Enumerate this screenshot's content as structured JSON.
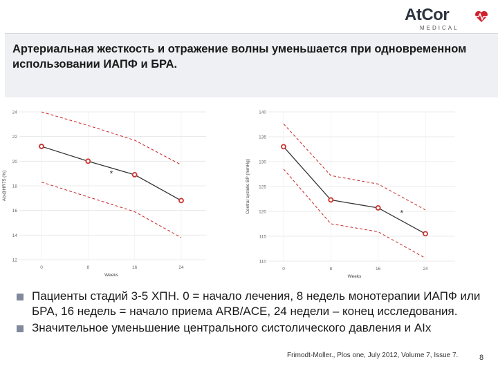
{
  "logo": {
    "main": "AtCor",
    "sub": "MEDICAL"
  },
  "slide": {
    "title": "Артериальная жесткость и отражение волны уменьшается при одновременном использовании  ИАПФ и БРА.",
    "bullets": [
      "Пациенты стадий 3-5 ХПН. 0 = начало лечения, 8 недель монотерапии ИАПФ или БРА, 16 недель = начало приема ARB/ACE, 24 недели – конец исследования.",
      "Значительное уменьшение центрального систолического давления и AIx"
    ],
    "citation": "Frimodt-Moller., Plos one, July 2012, Volume 7, Issue 7.",
    "page_number": "8"
  },
  "colors": {
    "series": "#333333",
    "marker": "#cc3333",
    "ci": "#cc3333",
    "logo_accent": "#d0202e",
    "bullet": "#808a9b"
  },
  "chart_data": [
    {
      "type": "line",
      "xlabel": "Weeks",
      "ylabel": "AIx@HR75 (%)",
      "x": [
        0,
        8,
        16,
        24
      ],
      "x_ticks": [
        "0",
        "8",
        "16",
        "24"
      ],
      "y_ticks": [
        "12",
        "14",
        "16",
        "18",
        "20",
        "22",
        "24"
      ],
      "ylim": [
        12,
        24
      ],
      "grid": true,
      "series": [
        {
          "values": [
            21.2,
            20.0,
            18.9,
            16.8
          ]
        },
        {
          "values": [
            24.0,
            22.9,
            21.7,
            19.7
          ],
          "style": "dashed"
        },
        {
          "values": [
            18.3,
            17.1,
            15.9,
            13.8
          ],
          "style": "dashed"
        }
      ],
      "annotations": [
        {
          "text": "*",
          "x": 12,
          "y": 19.2
        }
      ]
    },
    {
      "type": "line",
      "xlabel": "Weeks",
      "ylabel": "Central systolic BP (mmHg)",
      "x": [
        0,
        8,
        16,
        24
      ],
      "x_ticks": [
        "0",
        "8",
        "16",
        "24"
      ],
      "y_ticks": [
        "110",
        "115",
        "120",
        "125",
        "130",
        "135",
        "140"
      ],
      "ylim": [
        110,
        140
      ],
      "grid": true,
      "series": [
        {
          "values": [
            133.0,
            122.3,
            120.7,
            115.5
          ]
        },
        {
          "values": [
            137.6,
            127.2,
            125.5,
            120.3
          ],
          "style": "dashed"
        },
        {
          "values": [
            128.5,
            117.5,
            115.9,
            110.6
          ],
          "style": "dashed"
        }
      ],
      "annotations": [
        {
          "text": "*",
          "x": 20,
          "y": 120.2
        }
      ]
    }
  ]
}
